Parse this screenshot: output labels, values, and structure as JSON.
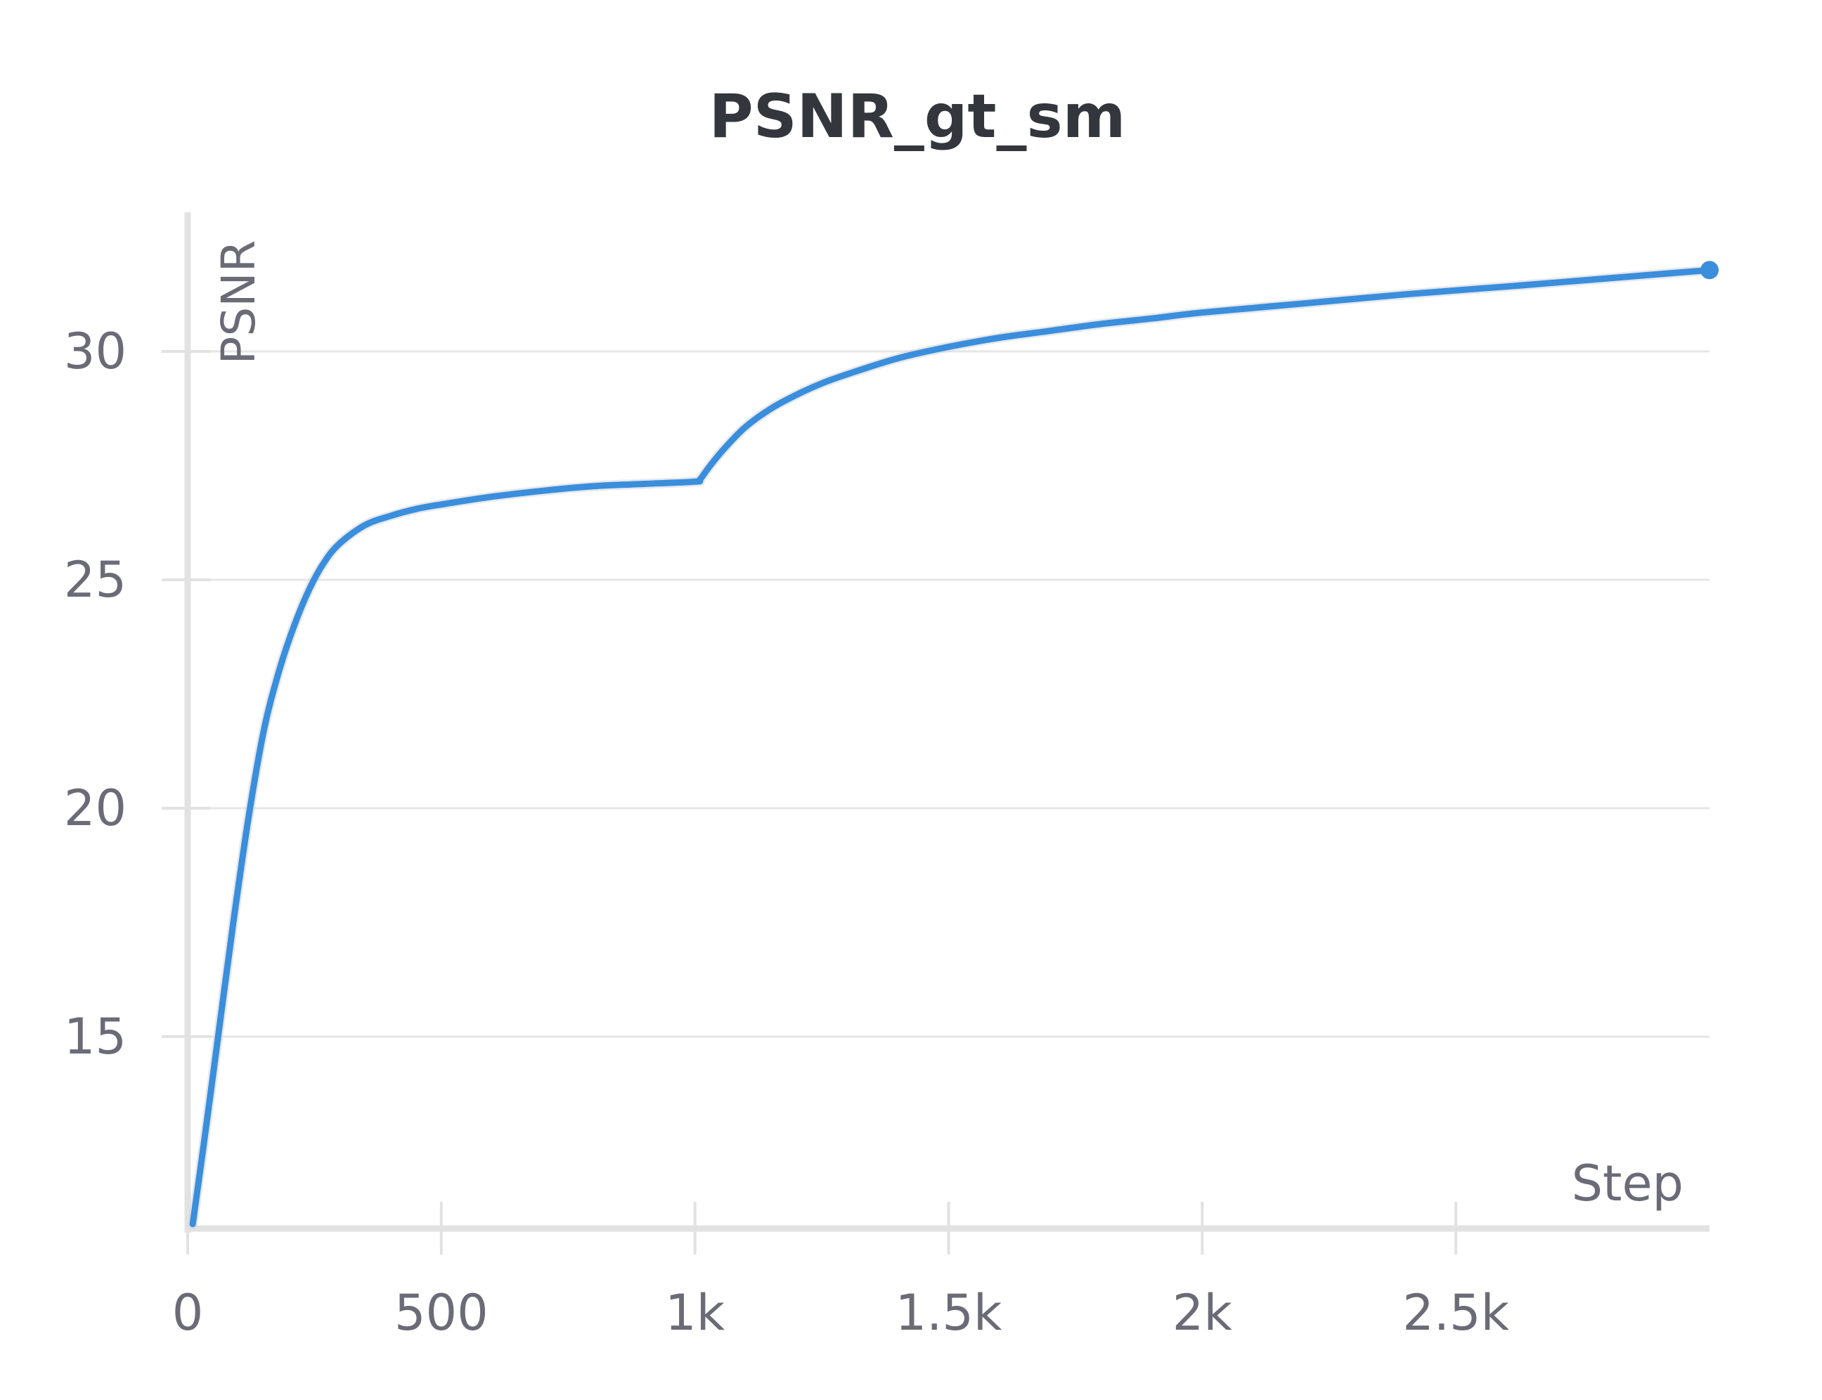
{
  "chart_data": {
    "type": "line",
    "title": "PSNR_gt_sm",
    "xlabel": "Step",
    "ylabel": "PSNR",
    "xlim": [
      0,
      3000
    ],
    "ylim": [
      10.8,
      33
    ],
    "x_ticks": [
      {
        "value": 0,
        "label": "0"
      },
      {
        "value": 500,
        "label": "500"
      },
      {
        "value": 1000,
        "label": "1k"
      },
      {
        "value": 1500,
        "label": "1.5k"
      },
      {
        "value": 2000,
        "label": "2k"
      },
      {
        "value": 2500,
        "label": "2.5k"
      }
    ],
    "y_ticks": [
      {
        "value": 15,
        "label": "15"
      },
      {
        "value": 20,
        "label": "20"
      },
      {
        "value": 25,
        "label": "25"
      },
      {
        "value": 30,
        "label": "30"
      }
    ],
    "grid": true,
    "legend": "none",
    "series": [
      {
        "color": "#3a8edc",
        "x": [
          10,
          30,
          60,
          90,
          120,
          150,
          180,
          210,
          240,
          270,
          300,
          350,
          400,
          450,
          500,
          600,
          700,
          800,
          900,
          1000,
          1010,
          1030,
          1060,
          1100,
          1150,
          1200,
          1250,
          1300,
          1400,
          1500,
          1600,
          1700,
          1800,
          1900,
          2000,
          2200,
          2400,
          2600,
          2800,
          3000
        ],
        "y": [
          10.9,
          12.5,
          15.0,
          17.5,
          19.8,
          21.7,
          23.0,
          24.0,
          24.8,
          25.4,
          25.8,
          26.2,
          26.4,
          26.55,
          26.65,
          26.82,
          26.95,
          27.05,
          27.1,
          27.15,
          27.2,
          27.5,
          27.9,
          28.35,
          28.75,
          29.05,
          29.3,
          29.5,
          29.85,
          30.1,
          30.3,
          30.45,
          30.6,
          30.72,
          30.85,
          31.05,
          31.25,
          31.42,
          31.6,
          31.78
        ]
      }
    ]
  }
}
